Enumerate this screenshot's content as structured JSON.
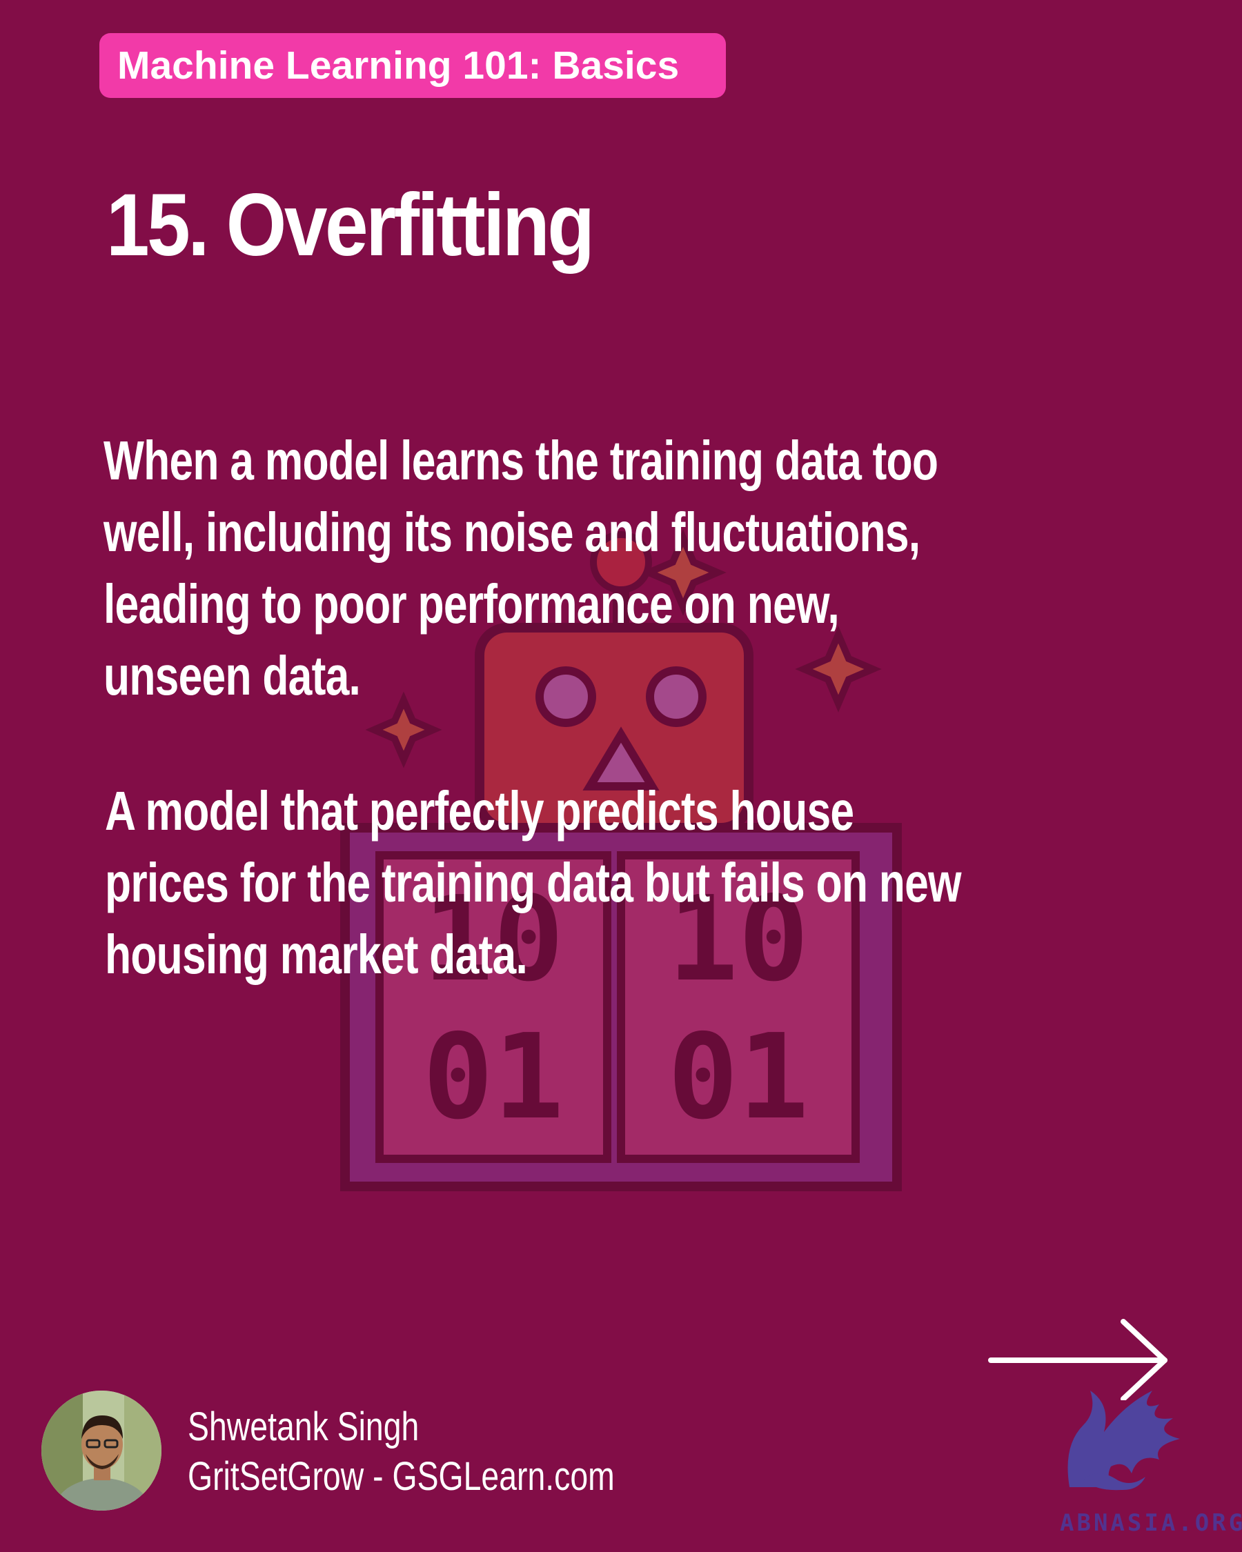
{
  "tag": "Machine Learning 101: Basics",
  "title": "15. Overfitting",
  "definition": [
    "When a model learns the training data too",
    "well, including its noise and fluctuations,",
    "leading to poor performance on new,",
    "unseen data."
  ],
  "example": [
    "A model that perfectly predicts house",
    "prices for the training data but fails on new",
    "housing market data."
  ],
  "illustration": {
    "icon": "robot-binary-icon",
    "binary_top_left": "10",
    "binary_top_right": "10",
    "binary_bottom_left": "01",
    "binary_bottom_right": "01"
  },
  "author": {
    "name": "Shwetank Singh",
    "site": "GritSetGrow - GSGLearn.com"
  },
  "watermark": "ABNASIA.ORG",
  "colors": {
    "background": "#820d47",
    "tag": "#f23aa8",
    "text": "#ffffff"
  }
}
